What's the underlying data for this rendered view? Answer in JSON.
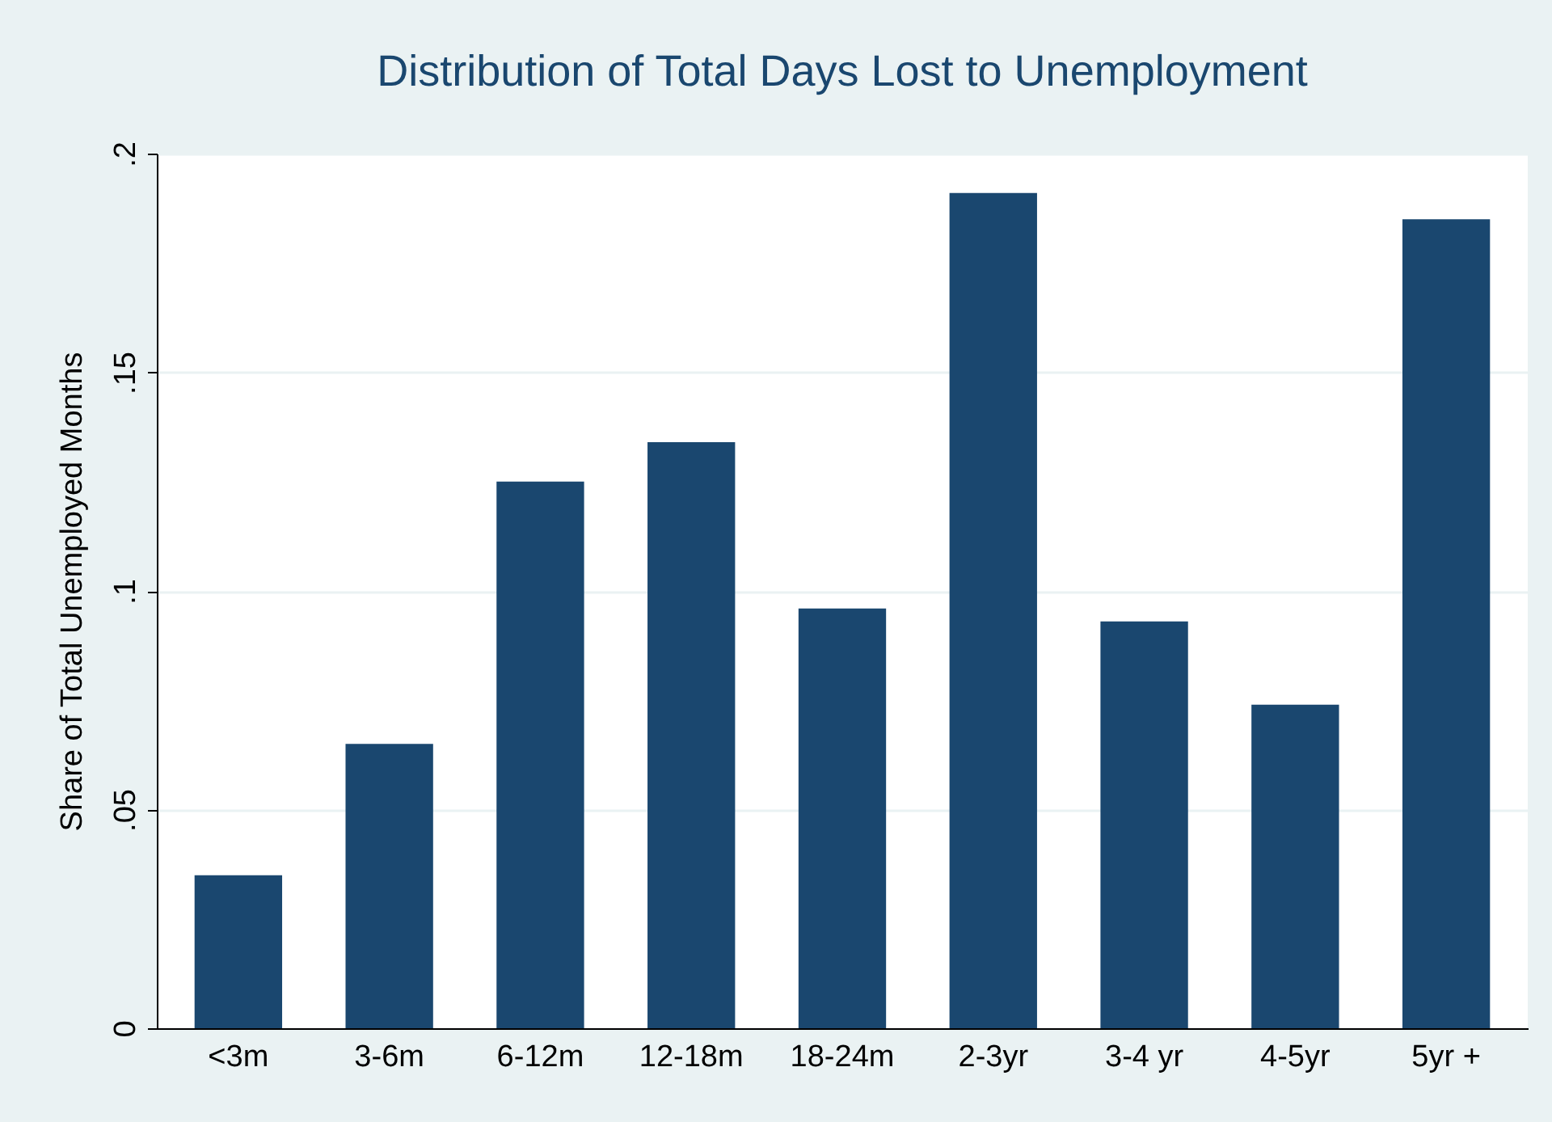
{
  "chart_data": {
    "type": "bar",
    "title": "Distribution of Total Days Lost to Unemployment",
    "ylabel": "Share of Total Unemployed Months",
    "categories": [
      "<3m",
      "3-6m",
      "6-12m",
      "12-18m",
      "18-24m",
      "2-3yr",
      "3-4 yr",
      "4-5yr",
      "5yr +"
    ],
    "values": [
      0.035,
      0.065,
      0.125,
      0.134,
      0.096,
      0.191,
      0.093,
      0.074,
      0.185
    ],
    "color": "#1a476f",
    "ylim": [
      0,
      0.2
    ],
    "yticks": [
      0,
      {
        "value": 0.05,
        "label": ".05"
      },
      {
        "value": 0.1,
        "label": ".1"
      },
      {
        "value": 0.15,
        "label": ".15"
      },
      {
        "value": 0.2,
        "label": ".2"
      }
    ],
    "grid": "y"
  }
}
